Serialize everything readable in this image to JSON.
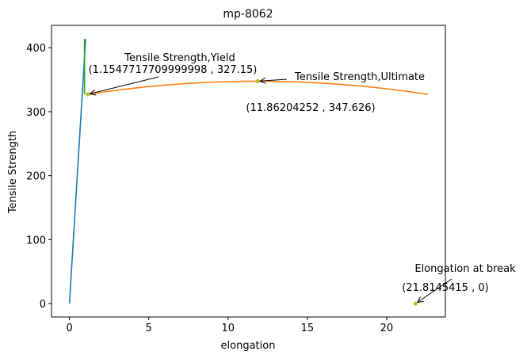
{
  "chart_data": {
    "type": "line",
    "title": "mp-8062",
    "xlabel": "elongation",
    "ylabel": "Tensile Strength",
    "xlim": [
      -1.13,
      23.7
    ],
    "ylim": [
      -21.0,
      435.0
    ],
    "xticks": [
      0,
      5,
      10,
      15,
      20
    ],
    "yticks": [
      0,
      100,
      200,
      300,
      400
    ],
    "grid": false,
    "legend": "none",
    "series": [
      {
        "color": "#1f77b4",
        "x": [
          0,
          1.02
        ],
        "y": [
          0,
          413
        ]
      },
      {
        "color": "#2ca02c",
        "x": [
          0.95,
          0.95
        ],
        "y": [
          327,
          414
        ]
      },
      {
        "color": "#ff7f0e",
        "curve": "quadratic",
        "x_range": [
          1.1547717709999998,
          22.6
        ],
        "vertex": [
          11.86204252,
          347.626
        ],
        "through": [
          1.1547717709999998,
          327.15
        ]
      }
    ],
    "points": [
      {
        "x": 1.1547717709999998,
        "y": 327.15,
        "color": "#bcbd22"
      },
      {
        "x": 11.86204252,
        "y": 347.626,
        "color": "#bcbd22"
      },
      {
        "x": 21.8145415,
        "y": 0,
        "color": "#bcbd22"
      }
    ],
    "annotations": [
      {
        "label": "Tensile Strength,Yield",
        "coords": "(1.1547717709999998 , 327.15)",
        "target": [
          1.1547717709999998,
          327.15
        ]
      },
      {
        "label": "Tensile Strength,Ultimate",
        "coords": "(11.86204252 , 347.626)",
        "target": [
          11.86204252,
          347.626
        ]
      },
      {
        "label": "Elongation at break",
        "coords": "(21.8145415 , 0)",
        "target": [
          21.8145415,
          0
        ]
      }
    ]
  }
}
